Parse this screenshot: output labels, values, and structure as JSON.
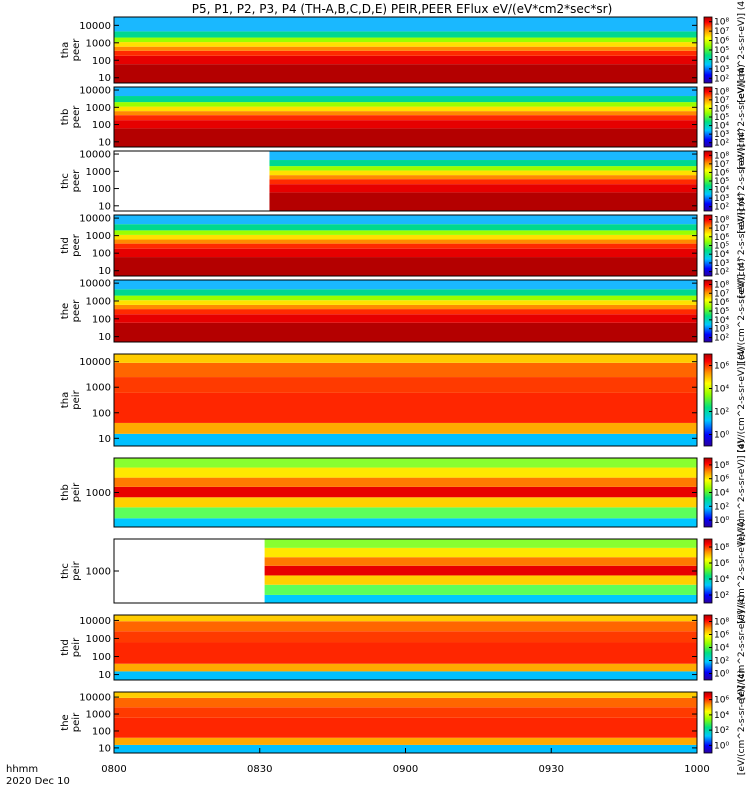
{
  "window": {
    "title": "P5, P1, P2, P3, P4 (TH-A,B,C,D,E) PEIR,PEER EFlux eV/(eV*cm2*sec*sr)"
  },
  "footer": {
    "time_label": "hhmm",
    "date_label": "2020 Dec 10"
  },
  "chart_data": {
    "type": "heatmap",
    "title": "P5, P1, P2, P3, P4 (TH-A,B,C,D,E) PEIR,PEER EFlux eV/(eV*cm2*sec*sr)",
    "x_ticks": [
      "0800",
      "0830",
      "0900",
      "0930",
      "1000"
    ],
    "x_range": [
      "08:00",
      "10:00"
    ],
    "x_axis_date": "2020 Dec 10",
    "colorscale": "rainbow (blue-low to red-high)",
    "panels": [
      {
        "probe": "tha",
        "species": "peer",
        "label": [
          "tha",
          "peer"
        ],
        "yscale": "log",
        "ylim": [
          5,
          30000
        ],
        "yticks": [
          "10",
          "100",
          "1000",
          "10000"
        ],
        "cb_ticks": [
          "10^2",
          "10^3",
          "10^4",
          "10^5",
          "10^6",
          "10^7",
          "10^8"
        ],
        "cb_label": "[eV/(cm^2-s-sr-eV)] (4)",
        "data_start": "08:00"
      },
      {
        "probe": "thb",
        "species": "peer",
        "label": [
          "thb",
          "peer"
        ],
        "yscale": "log",
        "ylim": [
          5,
          15000
        ],
        "yticks": [
          "10",
          "100",
          "1000",
          "10000"
        ],
        "cb_ticks": [
          "10^2",
          "10^3",
          "10^4",
          "10^5",
          "10^6",
          "10^7",
          "10^8"
        ],
        "cb_label": "[eV/(cm^2-s-sr-eV)] (4)",
        "data_start": "08:00"
      },
      {
        "probe": "thc",
        "species": "peer",
        "label": [
          "thc",
          "peer"
        ],
        "yscale": "log",
        "ylim": [
          5,
          15000
        ],
        "yticks": [
          "10",
          "100",
          "1000",
          "10000"
        ],
        "cb_ticks": [
          "10^2",
          "10^3",
          "10^4",
          "10^5",
          "10^6",
          "10^7",
          "10^8"
        ],
        "cb_label": "[eV/(cm^2-s-sr-eV)] (4)",
        "data_start": "08:32"
      },
      {
        "probe": "thd",
        "species": "peer",
        "label": [
          "thd",
          "peer"
        ],
        "yscale": "log",
        "ylim": [
          5,
          15000
        ],
        "yticks": [
          "10",
          "100",
          "1000",
          "10000"
        ],
        "cb_ticks": [
          "10^2",
          "10^3",
          "10^4",
          "10^5",
          "10^6",
          "10^7",
          "10^8"
        ],
        "cb_label": "[eV/(cm^2-s-sr-eV)] (4)",
        "data_start": "08:00"
      },
      {
        "probe": "the",
        "species": "peer",
        "label": [
          "the",
          "peer"
        ],
        "yscale": "log",
        "ylim": [
          5,
          15000
        ],
        "yticks": [
          "10",
          "100",
          "1000",
          "10000"
        ],
        "cb_ticks": [
          "10^2",
          "10^3",
          "10^4",
          "10^5",
          "10^6",
          "10^7",
          "10^8"
        ],
        "cb_label": "[eV/(cm^2-s-sr-eV)] (4)",
        "data_start": "08:00"
      },
      {
        "probe": "tha",
        "species": "peir",
        "label": [
          "tha",
          "peir"
        ],
        "yscale": "log",
        "ylim": [
          5,
          20000
        ],
        "yticks": [
          "10",
          "100",
          "1000",
          "10000"
        ],
        "cb_ticks": [
          "10^0",
          "10^2",
          "10^4",
          "10^6"
        ],
        "cb_label": "[eV/(cm^2-s-sr-eV)] (4)",
        "data_start": "08:00"
      },
      {
        "probe": "thb",
        "species": "peir",
        "label": [
          "thb",
          "peir"
        ],
        "yscale": "log",
        "ylim": [
          200,
          5000
        ],
        "yticks": [
          "1000"
        ],
        "cb_ticks": [
          "10^0",
          "10^2",
          "10^4",
          "10^6",
          "10^8"
        ],
        "cb_label": "[eV/(cm^2-s-sr-eV)] (4)",
        "data_start": "08:00"
      },
      {
        "probe": "thc",
        "species": "peir",
        "label": [
          "thc",
          "peir"
        ],
        "yscale": "log",
        "ylim": [
          200,
          5000
        ],
        "yticks": [
          "1000"
        ],
        "cb_ticks": [
          "10^2",
          "10^4",
          "10^6",
          "10^8"
        ],
        "cb_label": "[eV/(cm^2-s-sr-eV)] (4)",
        "data_start": "08:31"
      },
      {
        "probe": "thd",
        "species": "peir",
        "label": [
          "thd",
          "peir"
        ],
        "yscale": "log",
        "ylim": [
          5,
          20000
        ],
        "yticks": [
          "10",
          "100",
          "1000",
          "10000"
        ],
        "cb_ticks": [
          "10^0",
          "10^2",
          "10^4",
          "10^6",
          "10^8"
        ],
        "cb_label": "[eV/(cm^2-s-sr-eV)] (4)",
        "data_start": "08:00"
      },
      {
        "probe": "the",
        "species": "peir",
        "label": [
          "the",
          "peir"
        ],
        "yscale": "log",
        "ylim": [
          5,
          20000
        ],
        "yticks": [
          "10",
          "100",
          "1000",
          "10000"
        ],
        "cb_ticks": [
          "10^0",
          "10^2",
          "10^4",
          "10^6"
        ],
        "cb_label": "[eV/(cm^2-s-sr-eV)] (4)",
        "data_start": "08:00"
      }
    ]
  }
}
